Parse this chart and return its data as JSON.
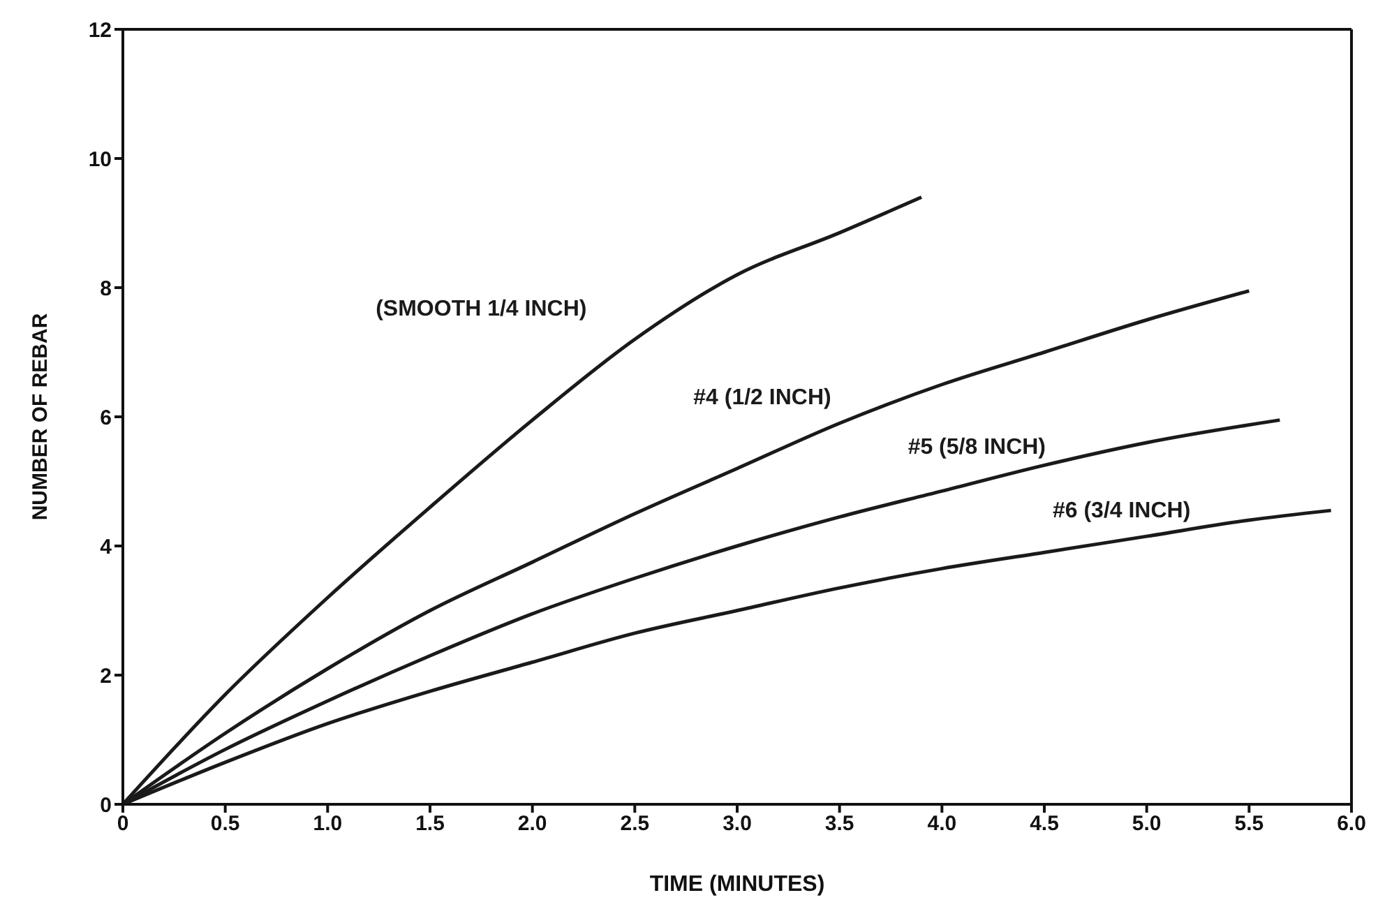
{
  "chart_data": {
    "type": "line",
    "xlabel": "TIME (MINUTES)",
    "ylabel": "NUMBER OF REBAR",
    "series": [
      {
        "name": "(SMOOTH 1/4 INCH)",
        "color": "#1a1a1a",
        "x": [
          0,
          0.5,
          1.0,
          1.5,
          2.0,
          2.5,
          3.0,
          3.5,
          3.9
        ],
        "values": [
          0,
          1.7,
          3.2,
          4.6,
          5.95,
          7.2,
          8.2,
          8.85,
          9.4
        ]
      },
      {
        "name": "#4 (1/2 INCH)",
        "color": "#1a1a1a",
        "x": [
          0,
          0.5,
          1.0,
          1.5,
          2.0,
          2.5,
          3.0,
          3.5,
          4.0,
          4.5,
          5.0,
          5.5
        ],
        "values": [
          0,
          1.1,
          2.1,
          3.0,
          3.75,
          4.5,
          5.2,
          5.9,
          6.5,
          7.0,
          7.5,
          7.95
        ]
      },
      {
        "name": "#5 (5/8 INCH)",
        "color": "#1a1a1a",
        "x": [
          0,
          0.5,
          1.0,
          1.5,
          2.0,
          2.5,
          3.0,
          3.5,
          4.0,
          4.5,
          5.0,
          5.65
        ],
        "values": [
          0,
          0.85,
          1.6,
          2.3,
          2.95,
          3.5,
          4.0,
          4.45,
          4.85,
          5.25,
          5.6,
          5.95
        ]
      },
      {
        "name": "#6 (3/4 INCH)",
        "color": "#1a1a1a",
        "x": [
          0,
          0.5,
          1.0,
          1.5,
          2.0,
          2.5,
          3.0,
          3.5,
          4.0,
          4.5,
          5.0,
          5.5,
          5.9
        ],
        "values": [
          0,
          0.65,
          1.25,
          1.75,
          2.2,
          2.65,
          3.0,
          3.35,
          3.65,
          3.9,
          4.15,
          4.4,
          4.55
        ]
      }
    ],
    "xlim": [
      0,
      6
    ],
    "xticks": [
      0,
      {
        "value": 0.5,
        "label": "0.5"
      },
      {
        "value": 1,
        "label": "1.0"
      },
      {
        "value": 1.5,
        "label": "1.5"
      },
      {
        "value": 2,
        "label": "2.0"
      },
      {
        "value": 2.5,
        "label": "2.5"
      },
      {
        "value": 3,
        "label": "3.0"
      },
      {
        "value": 3.5,
        "label": "3.5"
      },
      {
        "value": 4,
        "label": "4.0"
      },
      {
        "value": 4.5,
        "label": "4.5"
      },
      {
        "value": 5,
        "label": "5.0"
      },
      {
        "value": 5.5,
        "label": "5.5"
      },
      {
        "value": 6,
        "label": "6.0"
      }
    ],
    "ylim": [
      0,
      12
    ],
    "yticks": [
      0,
      2,
      4,
      6,
      8,
      10,
      12
    ],
    "grid": false,
    "legend": false,
    "marker": "none",
    "line_style": "solid"
  }
}
